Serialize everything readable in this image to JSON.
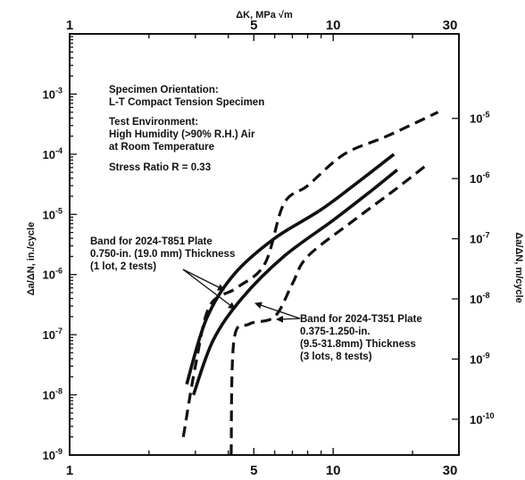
{
  "chart_data": {
    "type": "line",
    "title": "",
    "top_axis_label": "ΔK, MPa √m",
    "bottom_axis_label": "",
    "left_axis_label": "Δa/ΔN, in./cycle",
    "right_axis_label": "Δa/ΔN, m/cycle",
    "x_scale": "log",
    "y_scale": "log",
    "xlim": [
      1,
      30
    ],
    "ylim_in_per_cycle": [
      1e-09,
      0.01
    ],
    "x_ticks": [
      {
        "value": 1,
        "label": "1"
      },
      {
        "value": 5,
        "label": "5"
      },
      {
        "value": 10,
        "label": "10"
      },
      {
        "value": 30,
        "label": "30"
      }
    ],
    "y_ticks_left": [
      {
        "value": 1e-09,
        "base": "10",
        "exp": "-9"
      },
      {
        "value": 1e-08,
        "base": "10",
        "exp": "-8"
      },
      {
        "value": 1e-07,
        "base": "10",
        "exp": "-7"
      },
      {
        "value": 1e-06,
        "base": "10",
        "exp": "-6"
      },
      {
        "value": 1e-05,
        "base": "10",
        "exp": "-5"
      },
      {
        "value": 0.0001,
        "base": "10",
        "exp": "-4"
      },
      {
        "value": 0.001,
        "base": "10",
        "exp": "-3"
      }
    ],
    "y_ticks_right_m": [
      {
        "value": 1e-05,
        "base": "10",
        "exp": "-5"
      },
      {
        "value": 1e-06,
        "base": "10",
        "exp": "-6"
      },
      {
        "value": 1e-07,
        "base": "10",
        "exp": "-7"
      },
      {
        "value": 1e-08,
        "base": "10",
        "exp": "-8"
      },
      {
        "value": 1e-09,
        "base": "10",
        "exp": "-9"
      },
      {
        "value": 1e-10,
        "base": "10",
        "exp": "-10"
      }
    ],
    "series": [
      {
        "style": "solid",
        "points": [
          [
            2.78,
            1.5e-08
          ],
          [
            3.3,
            1.8e-07
          ],
          [
            4.2,
            1e-06
          ],
          [
            6.0,
            4e-06
          ],
          [
            9.0,
            1.2e-05
          ],
          [
            13.0,
            4e-05
          ],
          [
            17.0,
            0.0001
          ]
        ]
      },
      {
        "style": "solid",
        "points": [
          [
            2.95,
            1e-08
          ],
          [
            3.5,
            8e-08
          ],
          [
            4.5,
            4e-07
          ],
          [
            6.5,
            2e-06
          ],
          [
            10.0,
            8e-06
          ],
          [
            14.0,
            2.5e-05
          ],
          [
            17.5,
            5.5e-05
          ]
        ]
      },
      {
        "style": "dashed",
        "points": [
          [
            2.7,
            2e-09
          ],
          [
            3.0,
            3e-08
          ],
          [
            3.4,
            3e-07
          ],
          [
            4.3,
            6e-07
          ],
          [
            5.5,
            1.5e-06
          ],
          [
            6.5,
            1.5e-05
          ],
          [
            8.0,
            3e-05
          ],
          [
            11.0,
            0.0001
          ],
          [
            16.0,
            0.0002
          ],
          [
            25.0,
            0.0005
          ]
        ]
      },
      {
        "style": "dashed",
        "points": [
          [
            4.1,
            1e-09
          ],
          [
            4.2,
            8e-08
          ],
          [
            4.8,
            1.5e-07
          ],
          [
            6.0,
            2e-07
          ],
          [
            7.0,
            7e-07
          ],
          [
            8.0,
            2e-06
          ],
          [
            12.0,
            8e-06
          ],
          [
            17.0,
            2.5e-05
          ],
          [
            23.0,
            7e-05
          ]
        ]
      }
    ],
    "annotations": [
      {
        "lines": [
          "Specimen Orientation:",
          "L-T  Compact Tension Specimen"
        ]
      },
      {
        "lines": [
          "Test Environment:",
          "High Humidity (>90% R.H.) Air",
          "at Room Temperature"
        ]
      },
      {
        "lines": [
          "Stress Ratio R = 0.33"
        ]
      },
      {
        "lines": [
          "Band for 2024-T851 Plate",
          "0.750-in. (19.0 mm) Thickness",
          "(1 lot, 2 tests)"
        ]
      },
      {
        "lines": [
          "Band for 2024-T351 Plate",
          "0.375-1.250-in.",
          "(9.5-31.8mm) Thickness",
          "(3 lots, 8 tests)"
        ]
      }
    ],
    "grid": false
  }
}
